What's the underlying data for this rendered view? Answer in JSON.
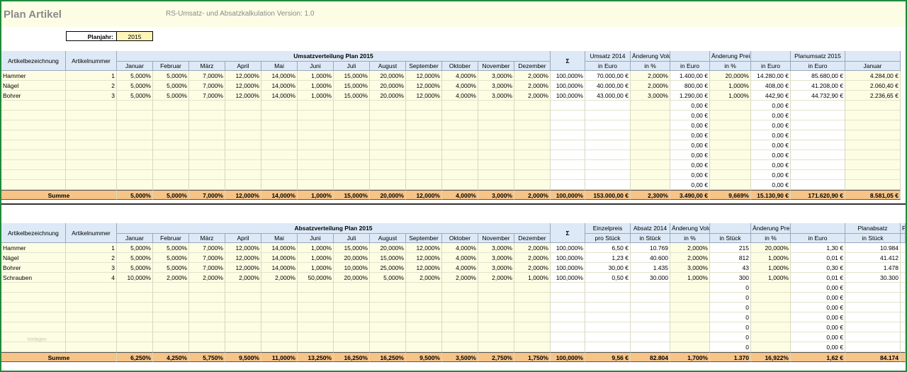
{
  "app": {
    "title": "Plan Artikel",
    "subtitle": "RS-Umsatz- und Absatzkalkulation Version:  1.0"
  },
  "planjahr": {
    "label": "Planjahr:",
    "value": "2015"
  },
  "months": [
    "Januar",
    "Februar",
    "März",
    "April",
    "Mai",
    "Juni",
    "Juli",
    "August",
    "September",
    "Oktober",
    "November",
    "Dezember"
  ],
  "umsatz": {
    "col_artikel": "Artikelbezeichnung",
    "col_nummer": "Artikelnummer",
    "group_title": "Umsatzverteilung Plan 2015",
    "sigma": "Σ",
    "extra_headers_top": [
      "Umsatz 2014",
      "Änderung Volumen",
      "",
      "Änderung Preis",
      "",
      "Planumsatz 2015",
      ""
    ],
    "extra_headers_sub": [
      "in Euro",
      "in %",
      "in Euro",
      "in %",
      "in Euro",
      "in Euro",
      "Januar"
    ],
    "rows": [
      {
        "name": "Hammer",
        "nr": "1",
        "m": [
          "5,000%",
          "5,000%",
          "7,000%",
          "12,000%",
          "14,000%",
          "1,000%",
          "15,000%",
          "20,000%",
          "12,000%",
          "4,000%",
          "3,000%",
          "2,000%"
        ],
        "sum": "100,000%",
        "x": [
          "70.000,00 €",
          "2,000%",
          "1.400,00 €",
          "20,000%",
          "14.280,00 €",
          "85.680,00 €",
          "4.284,00 €"
        ]
      },
      {
        "name": "Nägel",
        "nr": "2",
        "m": [
          "5,000%",
          "5,000%",
          "7,000%",
          "12,000%",
          "14,000%",
          "1,000%",
          "15,000%",
          "20,000%",
          "12,000%",
          "4,000%",
          "3,000%",
          "2,000%"
        ],
        "sum": "100,000%",
        "x": [
          "40.000,00 €",
          "2,000%",
          "800,00 €",
          "1,000%",
          "408,00 €",
          "41.208,00 €",
          "2.060,40 €"
        ]
      },
      {
        "name": "Bohrer",
        "nr": "3",
        "m": [
          "5,000%",
          "5,000%",
          "7,000%",
          "12,000%",
          "14,000%",
          "1,000%",
          "15,000%",
          "20,000%",
          "12,000%",
          "4,000%",
          "3,000%",
          "2,000%"
        ],
        "sum": "100,000%",
        "x": [
          "43.000,00 €",
          "3,000%",
          "1.290,00 €",
          "1,000%",
          "442,90 €",
          "44.732,90 €",
          "2.236,65 €"
        ]
      }
    ],
    "empty_row_values": {
      "vol_euro": "0,00 €",
      "preis_euro": "0,00 €"
    },
    "empty_row_count": 9,
    "summe": {
      "label": "Summe",
      "m": [
        "5,000%",
        "5,000%",
        "7,000%",
        "12,000%",
        "14,000%",
        "1,000%",
        "15,000%",
        "20,000%",
        "12,000%",
        "4,000%",
        "3,000%",
        "2,000%"
      ],
      "sum": "100,000%",
      "x": [
        "153.000,00 €",
        "2,300%",
        "3.490,00 €",
        "9,669%",
        "15.130,90 €",
        "171.620,90 €",
        "8.581,05 €"
      ]
    }
  },
  "absatz": {
    "col_artikel": "Artikelbezeichnung",
    "col_nummer": "Artikelnummer",
    "group_title": "Absatzverteilung Plan 2015",
    "sigma": "Σ",
    "extra_headers_top": [
      "Einzelpreis",
      "Absatz 2014",
      "Änderung Volumen",
      "",
      "Änderung Preis (pro Stück)",
      "",
      "Planabsatz",
      "P"
    ],
    "extra_headers_sub": [
      "pro Stück",
      "in Stück",
      "in %",
      "in Stück",
      "in %",
      "in Euro",
      "in Stück",
      ""
    ],
    "rows": [
      {
        "name": "Hammer",
        "nr": "1",
        "m": [
          "5,000%",
          "5,000%",
          "7,000%",
          "12,000%",
          "14,000%",
          "1,000%",
          "15,000%",
          "20,000%",
          "12,000%",
          "4,000%",
          "3,000%",
          "2,000%"
        ],
        "sum": "100,000%",
        "x": [
          "6,50 €",
          "10.769",
          "2,000%",
          "215",
          "20,000%",
          "1,30 €",
          "10.984"
        ]
      },
      {
        "name": "Nägel",
        "nr": "2",
        "m": [
          "5,000%",
          "5,000%",
          "7,000%",
          "12,000%",
          "14,000%",
          "1,000%",
          "20,000%",
          "15,000%",
          "12,000%",
          "4,000%",
          "3,000%",
          "2,000%"
        ],
        "sum": "100,000%",
        "x": [
          "1,23 €",
          "40.600",
          "2,000%",
          "812",
          "1,000%",
          "0,01 €",
          "41.412"
        ]
      },
      {
        "name": "Bohrer",
        "nr": "3",
        "m": [
          "5,000%",
          "5,000%",
          "7,000%",
          "12,000%",
          "14,000%",
          "1,000%",
          "10,000%",
          "25,000%",
          "12,000%",
          "4,000%",
          "3,000%",
          "2,000%"
        ],
        "sum": "100,000%",
        "x": [
          "30,00 €",
          "1.435",
          "3,000%",
          "43",
          "1,000%",
          "0,30 €",
          "1.478"
        ]
      },
      {
        "name": "Schrauben",
        "nr": "4",
        "m": [
          "10,000%",
          "2,000%",
          "2,000%",
          "2,000%",
          "2,000%",
          "50,000%",
          "20,000%",
          "5,000%",
          "2,000%",
          "2,000%",
          "2,000%",
          "1,000%"
        ],
        "sum": "100,000%",
        "x": [
          "0,50 €",
          "30.000",
          "1,000%",
          "300",
          "1,000%",
          "0,01 €",
          "30.300"
        ]
      }
    ],
    "empty_row_values": {
      "vol_stueck": "0",
      "preis_euro": "0,00 €"
    },
    "empty_row_count": 7,
    "summe": {
      "label": "Summe",
      "m": [
        "6,250%",
        "4,250%",
        "5,750%",
        "9,500%",
        "11,000%",
        "13,250%",
        "16,250%",
        "16,250%",
        "9,500%",
        "3,500%",
        "2,750%",
        "1,750%"
      ],
      "sum": "100,000%",
      "x": [
        "9,56 €",
        "82.804",
        "1,700%",
        "1.370",
        "16,922%",
        "1,62 €",
        "84.174"
      ]
    }
  },
  "watermark": "Vorlagen"
}
